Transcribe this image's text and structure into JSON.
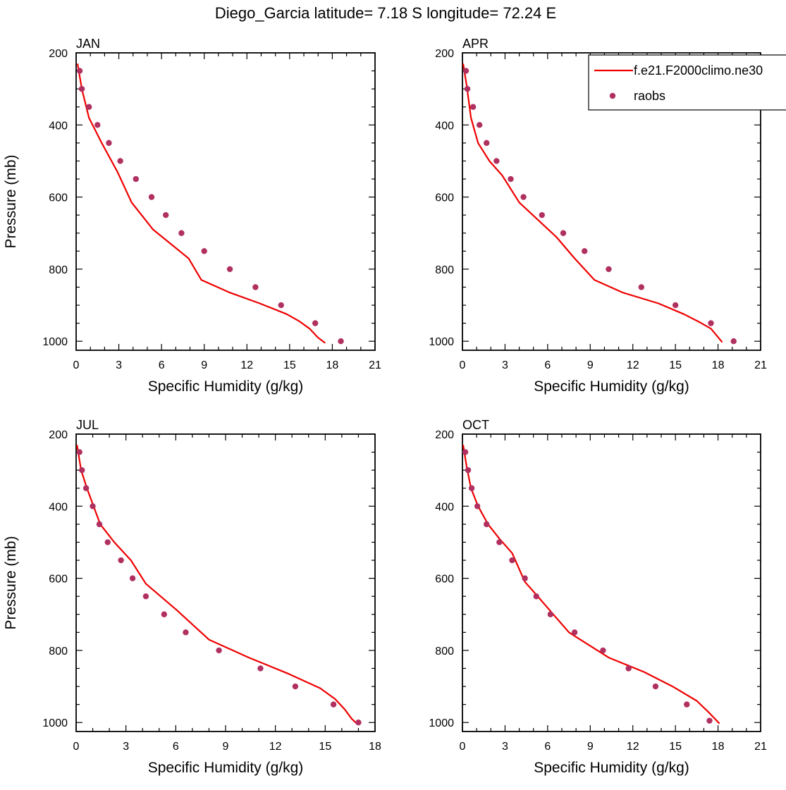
{
  "figure": {
    "title": "Diego_Garcia  latitude= 7.18 S longitude= 72.24 E"
  },
  "colors": {
    "model_line": "#ee0000",
    "obs_marker": "#b03060",
    "axis": "#000000"
  },
  "legend": {
    "placement": "top-right (inside APR panel, clipped at figure edge)",
    "entries": [
      {
        "label": "f.e21.F2000climo.ne30",
        "style": "line",
        "color": "#ee0000"
      },
      {
        "label": "raobs",
        "style": "marker",
        "color": "#b03060"
      }
    ]
  },
  "chart_data": [
    {
      "type": "line",
      "title": "JAN",
      "xlabel": "Specific Humidity (g/kg)",
      "ylabel": "Pressure (mb)",
      "xlim": [
        0,
        21
      ],
      "ylim": [
        200,
        1025
      ],
      "y_reversed": true,
      "xticks": [
        "0",
        "3",
        "6",
        "9",
        "12",
        "15",
        "18",
        "21"
      ],
      "yticks": [
        "200",
        "400",
        "600",
        "800",
        "1000"
      ],
      "series": [
        {
          "name": "f.e21.F2000climo.ne30",
          "kind": "line",
          "x": [
            0.1,
            0.4,
            0.9,
            1.8,
            2.9,
            3.9,
            5.4,
            7.9,
            8.8,
            10.8,
            12.9,
            14.8,
            15.7,
            16.4,
            17.0,
            17.5
          ],
          "y": [
            230,
            300,
            380,
            450,
            530,
            615,
            690,
            770,
            830,
            865,
            895,
            925,
            945,
            965,
            990,
            1005
          ]
        },
        {
          "name": "raobs",
          "kind": "scatter",
          "x": [
            0.25,
            0.4,
            0.9,
            1.5,
            2.3,
            3.1,
            4.2,
            5.3,
            6.3,
            7.4,
            9.0,
            10.8,
            12.6,
            14.4,
            16.8,
            18.6
          ],
          "y": [
            250,
            300,
            350,
            400,
            450,
            500,
            550,
            600,
            650,
            700,
            750,
            800,
            850,
            900,
            950,
            1000
          ]
        }
      ]
    },
    {
      "type": "line",
      "title": "APR",
      "xlabel": "Specific Humidity (g/kg)",
      "ylabel": "",
      "xlim": [
        0,
        21
      ],
      "ylim": [
        200,
        1025
      ],
      "y_reversed": true,
      "xticks": [
        "0",
        "3",
        "6",
        "9",
        "12",
        "15",
        "18",
        "21"
      ],
      "yticks": [
        "200",
        "400",
        "600",
        "800",
        "1000"
      ],
      "series": [
        {
          "name": "f.e21.F2000climo.ne30",
          "kind": "line",
          "x": [
            0.05,
            0.3,
            0.6,
            1.1,
            1.9,
            2.8,
            4.0,
            5.5,
            6.6,
            7.9,
            9.3,
            11.3,
            13.8,
            15.6,
            16.6,
            17.5,
            18.3
          ],
          "y": [
            230,
            290,
            380,
            450,
            500,
            540,
            615,
            670,
            710,
            770,
            830,
            865,
            895,
            925,
            945,
            965,
            1003
          ]
        },
        {
          "name": "raobs",
          "kind": "scatter",
          "x": [
            0.25,
            0.35,
            0.75,
            1.2,
            1.7,
            2.4,
            3.4,
            4.3,
            5.6,
            7.1,
            8.6,
            10.3,
            12.6,
            15.0,
            17.5,
            19.1
          ],
          "y": [
            250,
            300,
            350,
            400,
            450,
            500,
            550,
            600,
            650,
            700,
            750,
            800,
            850,
            900,
            950,
            1000
          ]
        }
      ]
    },
    {
      "type": "line",
      "title": "JUL",
      "xlabel": "Specific Humidity (g/kg)",
      "ylabel": "Pressure (mb)",
      "xlim": [
        0,
        18
      ],
      "ylim": [
        200,
        1025
      ],
      "y_reversed": true,
      "xticks": [
        "0",
        "3",
        "6",
        "9",
        "12",
        "15",
        "18"
      ],
      "yticks": [
        "200",
        "400",
        "600",
        "800",
        "1000"
      ],
      "series": [
        {
          "name": "f.e21.F2000climo.ne30",
          "kind": "line",
          "x": [
            0.05,
            0.3,
            0.65,
            1.05,
            1.45,
            2.3,
            3.3,
            4.2,
            6.1,
            8.0,
            10.4,
            12.8,
            14.7,
            15.6,
            16.2,
            16.6,
            16.95
          ],
          "y": [
            230,
            300,
            350,
            400,
            450,
            500,
            550,
            615,
            690,
            770,
            820,
            865,
            905,
            935,
            965,
            990,
            1005
          ]
        },
        {
          "name": "raobs",
          "kind": "scatter",
          "x": [
            0.2,
            0.35,
            0.6,
            1.0,
            1.4,
            1.9,
            2.7,
            3.4,
            4.2,
            5.3,
            6.6,
            8.6,
            11.1,
            13.2,
            15.5,
            17.0
          ],
          "y": [
            250,
            300,
            350,
            400,
            450,
            500,
            550,
            600,
            650,
            700,
            750,
            800,
            850,
            900,
            950,
            1000
          ]
        }
      ]
    },
    {
      "type": "line",
      "title": "OCT",
      "xlabel": "Specific Humidity (g/kg)",
      "ylabel": "",
      "xlim": [
        0,
        21
      ],
      "ylim": [
        200,
        1025
      ],
      "y_reversed": true,
      "xticks": [
        "0",
        "3",
        "6",
        "9",
        "12",
        "15",
        "18",
        "21"
      ],
      "yticks": [
        "200",
        "400",
        "600",
        "800",
        "1000"
      ],
      "series": [
        {
          "name": "f.e21.F2000climo.ne30",
          "kind": "line",
          "x": [
            0.05,
            0.3,
            0.6,
            1.1,
            1.8,
            2.6,
            3.5,
            4.4,
            5.3,
            6.4,
            7.5,
            8.3,
            10.3,
            12.8,
            14.8,
            16.5,
            17.3,
            18.1
          ],
          "y": [
            230,
            290,
            350,
            400,
            450,
            490,
            530,
            610,
            650,
            700,
            750,
            770,
            820,
            860,
            900,
            940,
            970,
            1003
          ]
        },
        {
          "name": "raobs",
          "kind": "scatter",
          "x": [
            0.2,
            0.4,
            0.65,
            1.05,
            1.7,
            2.6,
            3.5,
            4.4,
            5.2,
            6.2,
            7.9,
            9.9,
            11.7,
            13.6,
            15.8,
            17.4
          ],
          "y": [
            250,
            300,
            350,
            400,
            450,
            500,
            550,
            600,
            650,
            700,
            750,
            800,
            850,
            900,
            950,
            995
          ]
        }
      ]
    }
  ]
}
